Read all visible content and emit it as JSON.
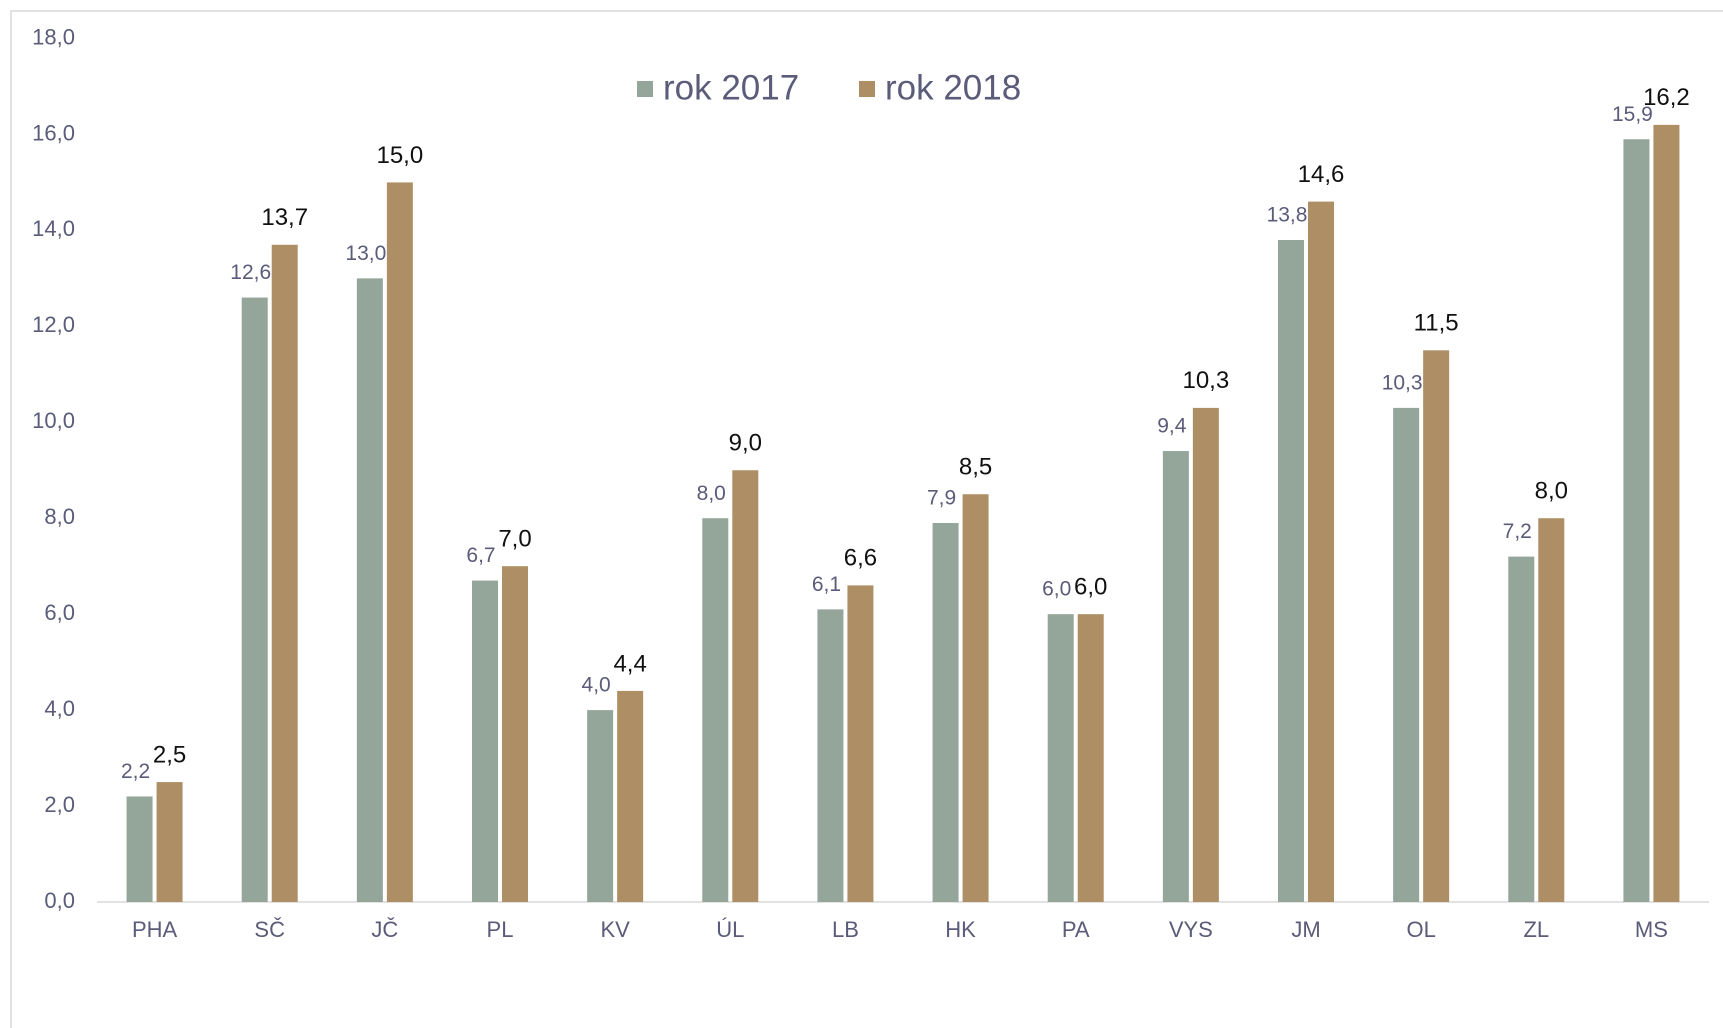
{
  "chart_data": {
    "type": "bar",
    "categories": [
      "PHA",
      "SČ",
      "JČ",
      "PL",
      "KV",
      "ÚL",
      "LB",
      "HK",
      "PA",
      "VYS",
      "JM",
      "OL",
      "ZL",
      "MS"
    ],
    "series": [
      {
        "name": "rok 2017",
        "color": "#94a59a",
        "values": [
          2.2,
          12.6,
          13.0,
          6.7,
          4.0,
          8.0,
          6.1,
          7.9,
          6.0,
          9.4,
          13.8,
          10.3,
          7.2,
          15.9
        ],
        "value_labels": [
          "2,2",
          "12,6",
          "13,0",
          "6,7",
          "4,0",
          "8,0",
          "6,1",
          "7,9",
          "6,0",
          "9,4",
          "13,8",
          "10,3",
          "7,2",
          "15,9"
        ]
      },
      {
        "name": "rok 2018",
        "color": "#ae8f65",
        "values": [
          2.5,
          13.7,
          15.0,
          7.0,
          4.4,
          9.0,
          6.6,
          8.5,
          6.0,
          10.3,
          14.6,
          11.5,
          8.0,
          16.2
        ],
        "value_labels": [
          "2,5",
          "13,7",
          "15,0",
          "7,0",
          "4,4",
          "9,0",
          "6,6",
          "8,5",
          "6,0",
          "10,3",
          "14,6",
          "11,5",
          "8,0",
          "16,2"
        ]
      }
    ],
    "ylim": [
      0,
      18
    ],
    "yticks": [
      {
        "value": 0,
        "label": "0,0"
      },
      {
        "value": 2,
        "label": "2,0"
      },
      {
        "value": 4,
        "label": "4,0"
      },
      {
        "value": 6,
        "label": "6,0"
      },
      {
        "value": 8,
        "label": "8,0"
      },
      {
        "value": 10,
        "label": "10,0"
      },
      {
        "value": 12,
        "label": "12,0"
      },
      {
        "value": 14,
        "label": "14,0"
      },
      {
        "value": 16,
        "label": "16,0"
      },
      {
        "value": 18,
        "label": "18,0"
      }
    ],
    "grid": false,
    "legend": "top"
  }
}
